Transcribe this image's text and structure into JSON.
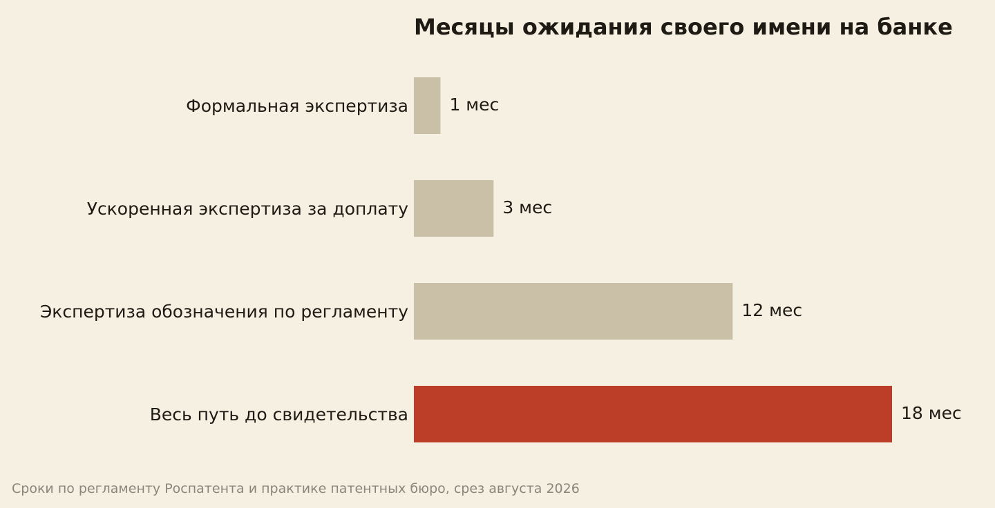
{
  "chart_data": {
    "type": "bar",
    "orientation": "horizontal",
    "title": "Месяцы ожидания своего имени на банке",
    "categories": [
      "Формальная экспертиза",
      "Ускоренная экспертиза за доплату",
      "Экспертиза обозначения по регламенту",
      "Весь путь до свидетельства"
    ],
    "values": [
      1,
      3,
      12,
      18
    ],
    "value_labels": [
      "1 мес",
      "3 мес",
      "12 мес",
      "18 мес"
    ],
    "highlight_index": 3,
    "colors": {
      "default": "#c9c0a7",
      "highlight": "#bc3d28",
      "background": "#f6f0e3"
    },
    "xlim": [
      0,
      18
    ],
    "grid": false,
    "legend": "none",
    "source": "Сроки по регламенту Роспатента и практике патентных бюро, срез августа 2026"
  }
}
